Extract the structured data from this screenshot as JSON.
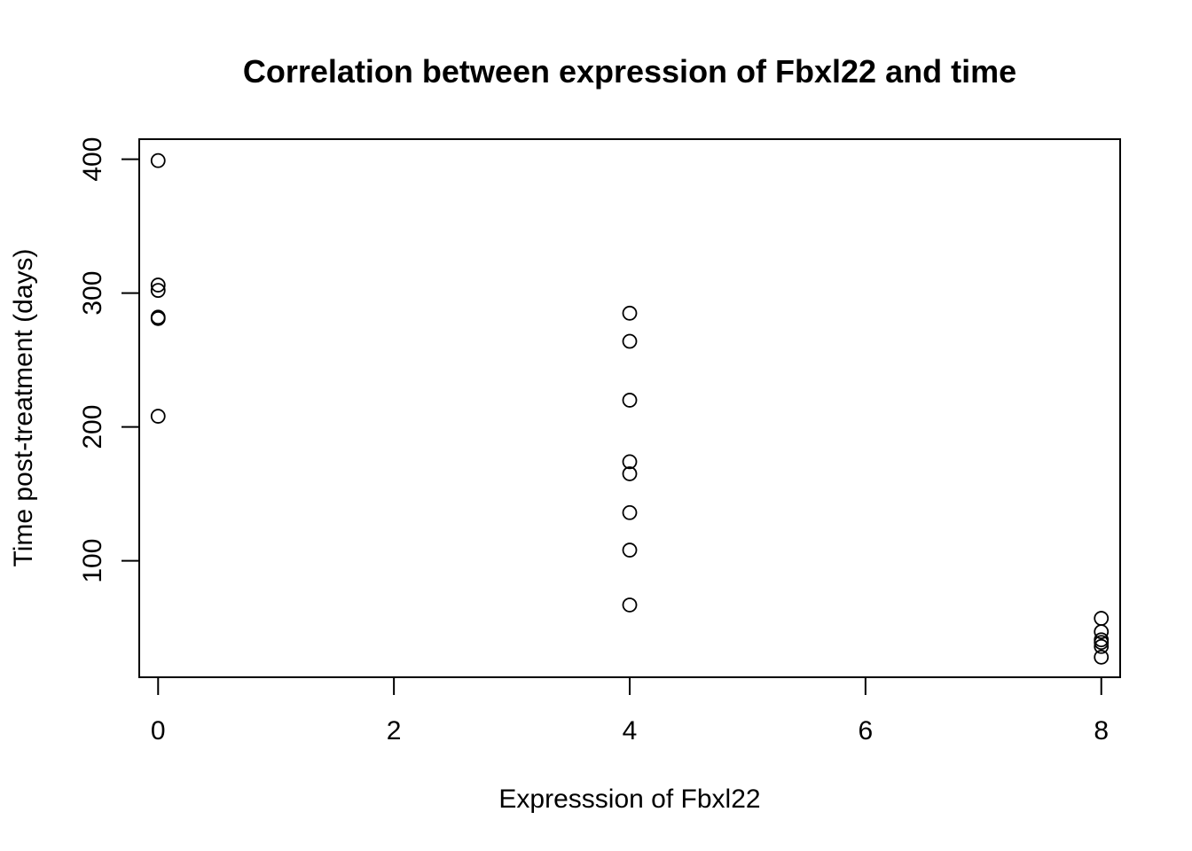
{
  "chart_data": {
    "type": "scatter",
    "title": "Correlation between expression of Fbxl22 and time",
    "xlabel": "Expresssion of Fbxl22",
    "ylabel": "Time post-treatment (days)",
    "xlim": [
      -0.16,
      8.16
    ],
    "ylim": [
      13,
      415
    ],
    "xticks": [
      0,
      2,
      4,
      6,
      8
    ],
    "yticks": [
      100,
      200,
      300,
      400
    ],
    "grid": false,
    "points": [
      {
        "x": 0,
        "y": 399
      },
      {
        "x": 0,
        "y": 306
      },
      {
        "x": 0,
        "y": 302
      },
      {
        "x": 0,
        "y": 282
      },
      {
        "x": 0,
        "y": 281
      },
      {
        "x": 0,
        "y": 208
      },
      {
        "x": 4,
        "y": 285
      },
      {
        "x": 4,
        "y": 264
      },
      {
        "x": 4,
        "y": 220
      },
      {
        "x": 4,
        "y": 174
      },
      {
        "x": 4,
        "y": 165
      },
      {
        "x": 4,
        "y": 136
      },
      {
        "x": 4,
        "y": 108
      },
      {
        "x": 4,
        "y": 67
      },
      {
        "x": 8,
        "y": 57
      },
      {
        "x": 8,
        "y": 47
      },
      {
        "x": 8,
        "y": 41
      },
      {
        "x": 8,
        "y": 39
      },
      {
        "x": 8,
        "y": 36
      },
      {
        "x": 8,
        "y": 28
      }
    ]
  }
}
